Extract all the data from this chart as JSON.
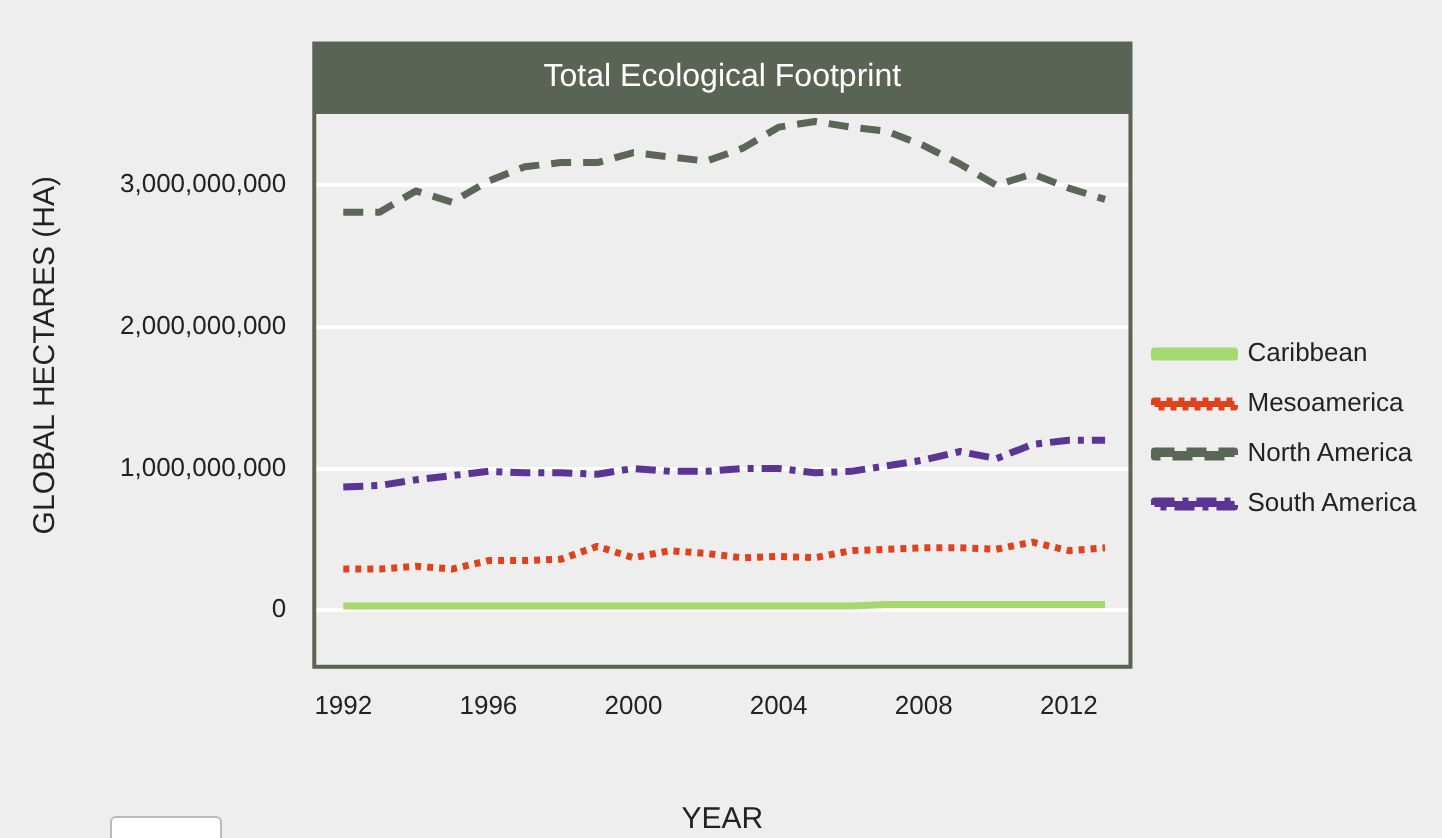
{
  "chart_data": {
    "type": "line",
    "title": "Total Ecological Footprint",
    "xlabel": "YEAR",
    "ylabel": "GLOBAL HECTARES (HA)",
    "x": [
      1992,
      1993,
      1994,
      1995,
      1996,
      1997,
      1998,
      1999,
      2000,
      2001,
      2002,
      2003,
      2004,
      2005,
      2006,
      2007,
      2008,
      2009,
      2010,
      2011,
      2012,
      2013
    ],
    "series": [
      {
        "name": "Caribbean",
        "color": "#a5d86e",
        "line_style": "solid",
        "values": [
          30000000,
          30000000,
          30000000,
          30000000,
          30000000,
          30000000,
          30000000,
          30000000,
          30000000,
          30000000,
          30000000,
          30000000,
          30000000,
          30000000,
          30000000,
          40000000,
          40000000,
          40000000,
          40000000,
          40000000,
          40000000,
          40000000
        ]
      },
      {
        "name": "Mesoamerica",
        "color": "#e0421e",
        "line_style": "dotted",
        "values": [
          290000000,
          290000000,
          310000000,
          290000000,
          350000000,
          350000000,
          360000000,
          450000000,
          370000000,
          420000000,
          400000000,
          370000000,
          380000000,
          370000000,
          420000000,
          430000000,
          440000000,
          440000000,
          430000000,
          480000000,
          420000000,
          440000000
        ]
      },
      {
        "name": "North America",
        "color": "#5a6656",
        "line_style": "dashed",
        "values": [
          2810000000,
          2810000000,
          2960000000,
          2880000000,
          3030000000,
          3130000000,
          3160000000,
          3160000000,
          3230000000,
          3200000000,
          3170000000,
          3260000000,
          3410000000,
          3450000000,
          3410000000,
          3380000000,
          3280000000,
          3150000000,
          3000000000,
          3080000000,
          2980000000,
          2900000000
        ]
      },
      {
        "name": "South America",
        "color": "#5b3494",
        "line_style": "dashdot",
        "values": [
          870000000,
          880000000,
          920000000,
          950000000,
          980000000,
          970000000,
          970000000,
          960000000,
          1000000000,
          980000000,
          980000000,
          1000000000,
          1000000000,
          970000000,
          980000000,
          1020000000,
          1060000000,
          1120000000,
          1070000000,
          1170000000,
          1200000000,
          1200000000
        ]
      }
    ],
    "xlim": [
      1991.2,
      2013.7
    ],
    "xticks": [
      1992,
      1996,
      2000,
      2004,
      2008,
      2012
    ],
    "ylim": [
      -400000000,
      4000000000
    ],
    "yticks": [
      0,
      {
        "value": 1000000000,
        "label": "1,000,000,000"
      },
      {
        "value": 2000000000,
        "label": "2,000,000,000"
      },
      {
        "value": 3000000000,
        "label": "3,000,000,000"
      }
    ],
    "grid": "y",
    "legend": "right",
    "marker": "none"
  }
}
